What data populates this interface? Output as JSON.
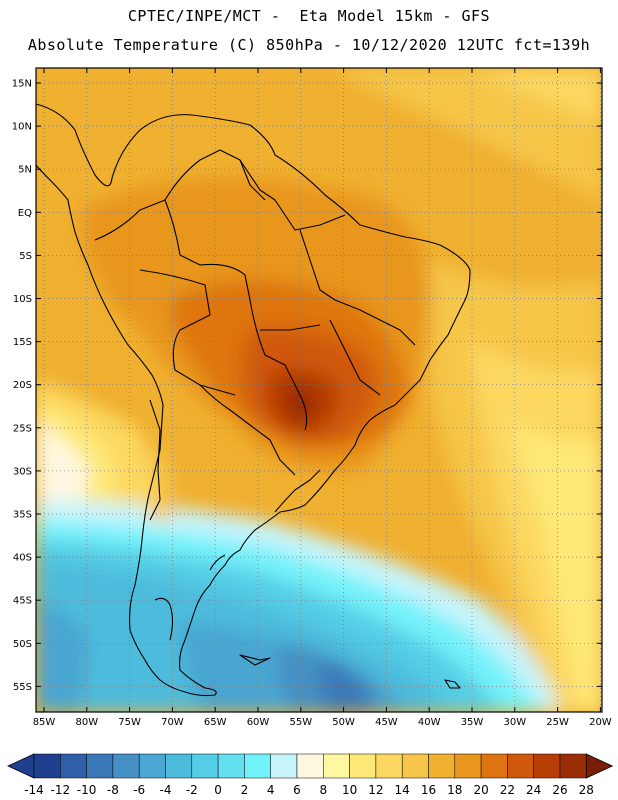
{
  "header": {
    "line1": "CPTEC/INPE/MCT -  Eta Model 15km - GFS",
    "line2": "Absolute Temperature (C) 850hPa - 10/12/2020 12UTC fct=139h"
  },
  "map": {
    "lat_labels": [
      "15N",
      "10N",
      "5N",
      "EQ",
      "5S",
      "10S",
      "15S",
      "20S",
      "25S",
      "30S",
      "35S",
      "40S",
      "45S",
      "50S",
      "55S"
    ],
    "lon_labels": [
      "85W",
      "80W",
      "75W",
      "70W",
      "65W",
      "60W",
      "55W",
      "50W",
      "45W",
      "40W",
      "35W",
      "30W",
      "25W",
      "20W"
    ]
  },
  "colorbar": {
    "labels": [
      "-14",
      "-12",
      "-10",
      "-8",
      "-6",
      "-4",
      "-2",
      "0",
      "2",
      "4",
      "6",
      "8",
      "10",
      "12",
      "14",
      "16",
      "18",
      "20",
      "22",
      "24",
      "26",
      "28"
    ],
    "colors": [
      "#1f3f8f",
      "#2f5fa8",
      "#3a78b8",
      "#4590c4",
      "#4aa6d2",
      "#4dbcdc",
      "#55cde6",
      "#63e0f0",
      "#74f2fa",
      "#c8f4fb",
      "#fff8e0",
      "#fef9a0",
      "#fee878",
      "#fcd860",
      "#f6c64a",
      "#f0b030",
      "#e8961e",
      "#de7410",
      "#d0580a",
      "#b83e06",
      "#9a2c06",
      "#7a1e0a"
    ]
  }
}
